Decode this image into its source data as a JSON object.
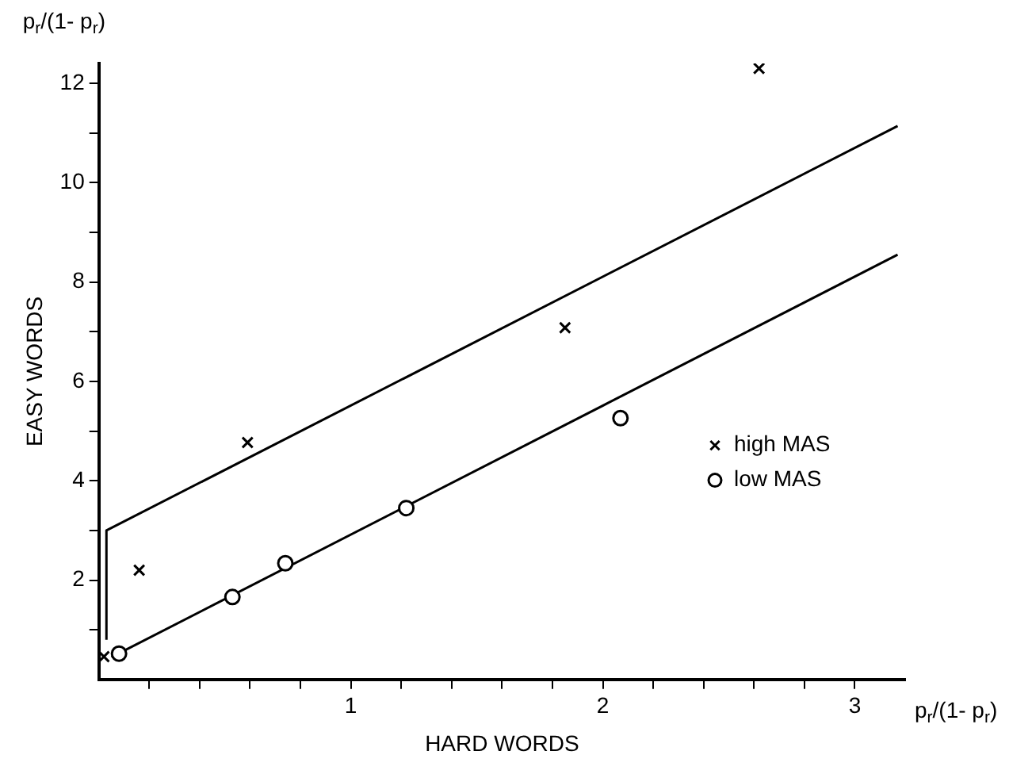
{
  "chart_data": {
    "type": "scatter",
    "xlabel": "HARD WORDS",
    "ylabel": "EASY WORDS",
    "annotations": [
      "p$_{r}$/(1- p$_{r}$)",
      "p$_{r}$/(1- p$_{r}$)"
    ],
    "xlim": [
      0,
      3.2
    ],
    "ylim": [
      0,
      12.4
    ],
    "xticks": [
      {
        "value": 0.2,
        "label": null
      },
      {
        "value": 0.4,
        "label": null
      },
      {
        "value": 0.6,
        "label": null
      },
      {
        "value": 0.8,
        "label": null
      },
      1,
      {
        "value": 1.2,
        "label": null
      },
      {
        "value": 1.4,
        "label": null
      },
      {
        "value": 1.6,
        "label": null
      },
      {
        "value": 1.8,
        "label": null
      },
      2,
      {
        "value": 2.2,
        "label": null
      },
      {
        "value": 2.4,
        "label": null
      },
      {
        "value": 2.6,
        "label": null
      },
      {
        "value": 2.8,
        "label": null
      },
      3
    ],
    "yticks": [
      {
        "value": 1,
        "label": null
      },
      2,
      {
        "value": 3,
        "label": null
      },
      4,
      {
        "value": 5,
        "label": null
      },
      6,
      {
        "value": 7,
        "label": null
      },
      8,
      {
        "value": 9,
        "label": null
      },
      10,
      {
        "value": 11,
        "label": null
      },
      12
    ],
    "grid": false,
    "legend": "right",
    "series": [
      {
        "name": "high MAS",
        "color": "#000000",
        "marker": "cross",
        "x": [
          0.02,
          0.16,
          0.59,
          1.85,
          2.62
        ],
        "values": [
          0.46,
          2.2,
          4.77,
          7.08,
          12.3
        ]
      },
      {
        "name": "low MAS",
        "color": "#000000",
        "marker": "circle",
        "x": [
          0.08,
          0.53,
          0.74,
          1.22,
          2.07
        ],
        "values": [
          0.52,
          1.66,
          2.34,
          3.45,
          5.26
        ]
      },
      {
        "type": "line",
        "color": "#000000",
        "marker": "none",
        "x": [
          0.03,
          0.03,
          3.17
        ],
        "values": [
          0.8,
          3.0,
          11.14
        ]
      },
      {
        "type": "line",
        "color": "#000000",
        "marker": "none",
        "x": [
          0.05,
          3.17
        ],
        "values": [
          0.45,
          8.55
        ]
      }
    ]
  }
}
